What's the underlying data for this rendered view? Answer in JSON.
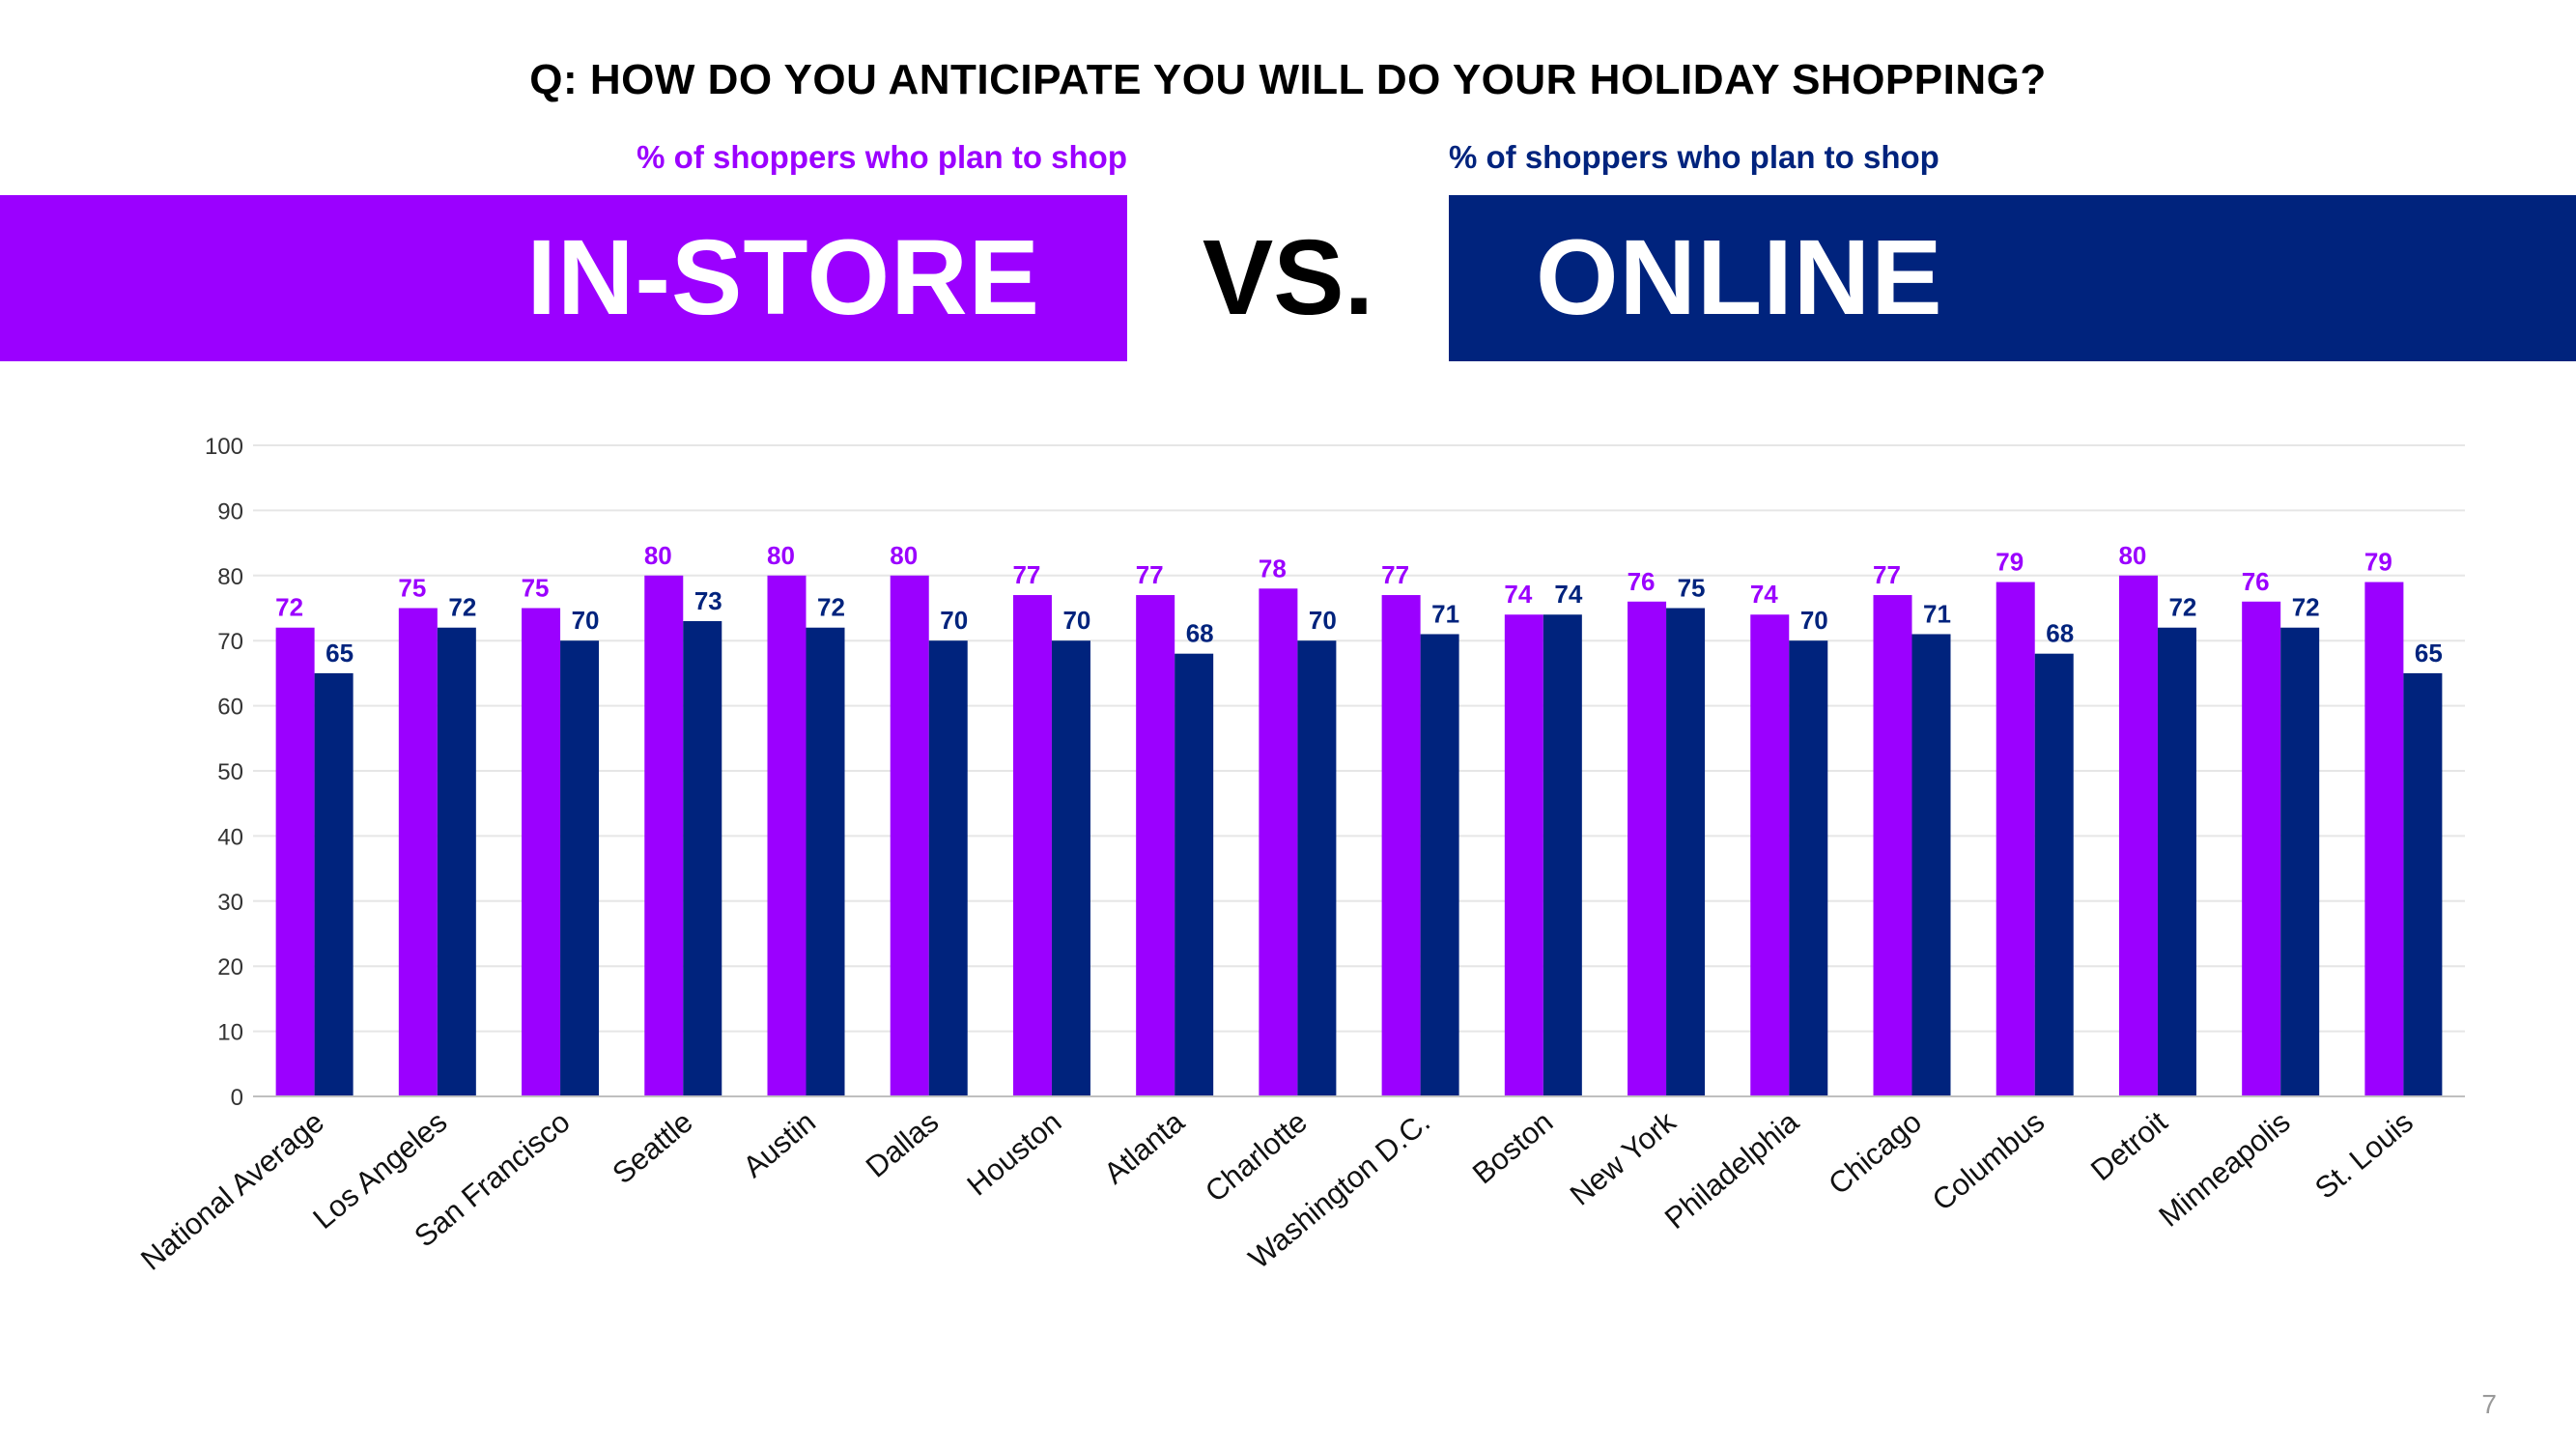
{
  "header": {
    "question": "Q: HOW DO YOU ANTICIPATE YOU WILL DO YOUR HOLIDAY SHOPPING?",
    "left_subtitle": "% of shoppers who plan to shop",
    "right_subtitle": "% of shoppers who plan to shop",
    "left_label": "IN-STORE",
    "vs": "VS.",
    "right_label": "ONLINE"
  },
  "colors": {
    "instore": "#9B00FF",
    "online": "#00237D",
    "grid": "#E6E6E6",
    "axis_text": "#333333"
  },
  "chart_data": {
    "type": "bar",
    "categories": [
      "National Average",
      "Los Angeles",
      "San Francisco",
      "Seattle",
      "Austin",
      "Dallas",
      "Houston",
      "Atlanta",
      "Charlotte",
      "Washington D.C.",
      "Boston",
      "New York",
      "Philadelphia",
      "Chicago",
      "Columbus",
      "Detroit",
      "Minneapolis",
      "St. Louis"
    ],
    "series": [
      {
        "name": "IN-STORE",
        "values": [
          72,
          75,
          75,
          80,
          80,
          80,
          77,
          77,
          78,
          77,
          74,
          76,
          74,
          77,
          79,
          80,
          76,
          79
        ]
      },
      {
        "name": "ONLINE",
        "values": [
          65,
          72,
          70,
          73,
          72,
          70,
          70,
          68,
          70,
          71,
          74,
          75,
          70,
          71,
          68,
          72,
          72,
          65
        ]
      }
    ],
    "ylim": [
      0,
      100
    ],
    "yticks": [
      0,
      10,
      20,
      30,
      40,
      50,
      60,
      70,
      80,
      90,
      100
    ],
    "grid": true,
    "data_labels": true
  },
  "page_number": "7"
}
